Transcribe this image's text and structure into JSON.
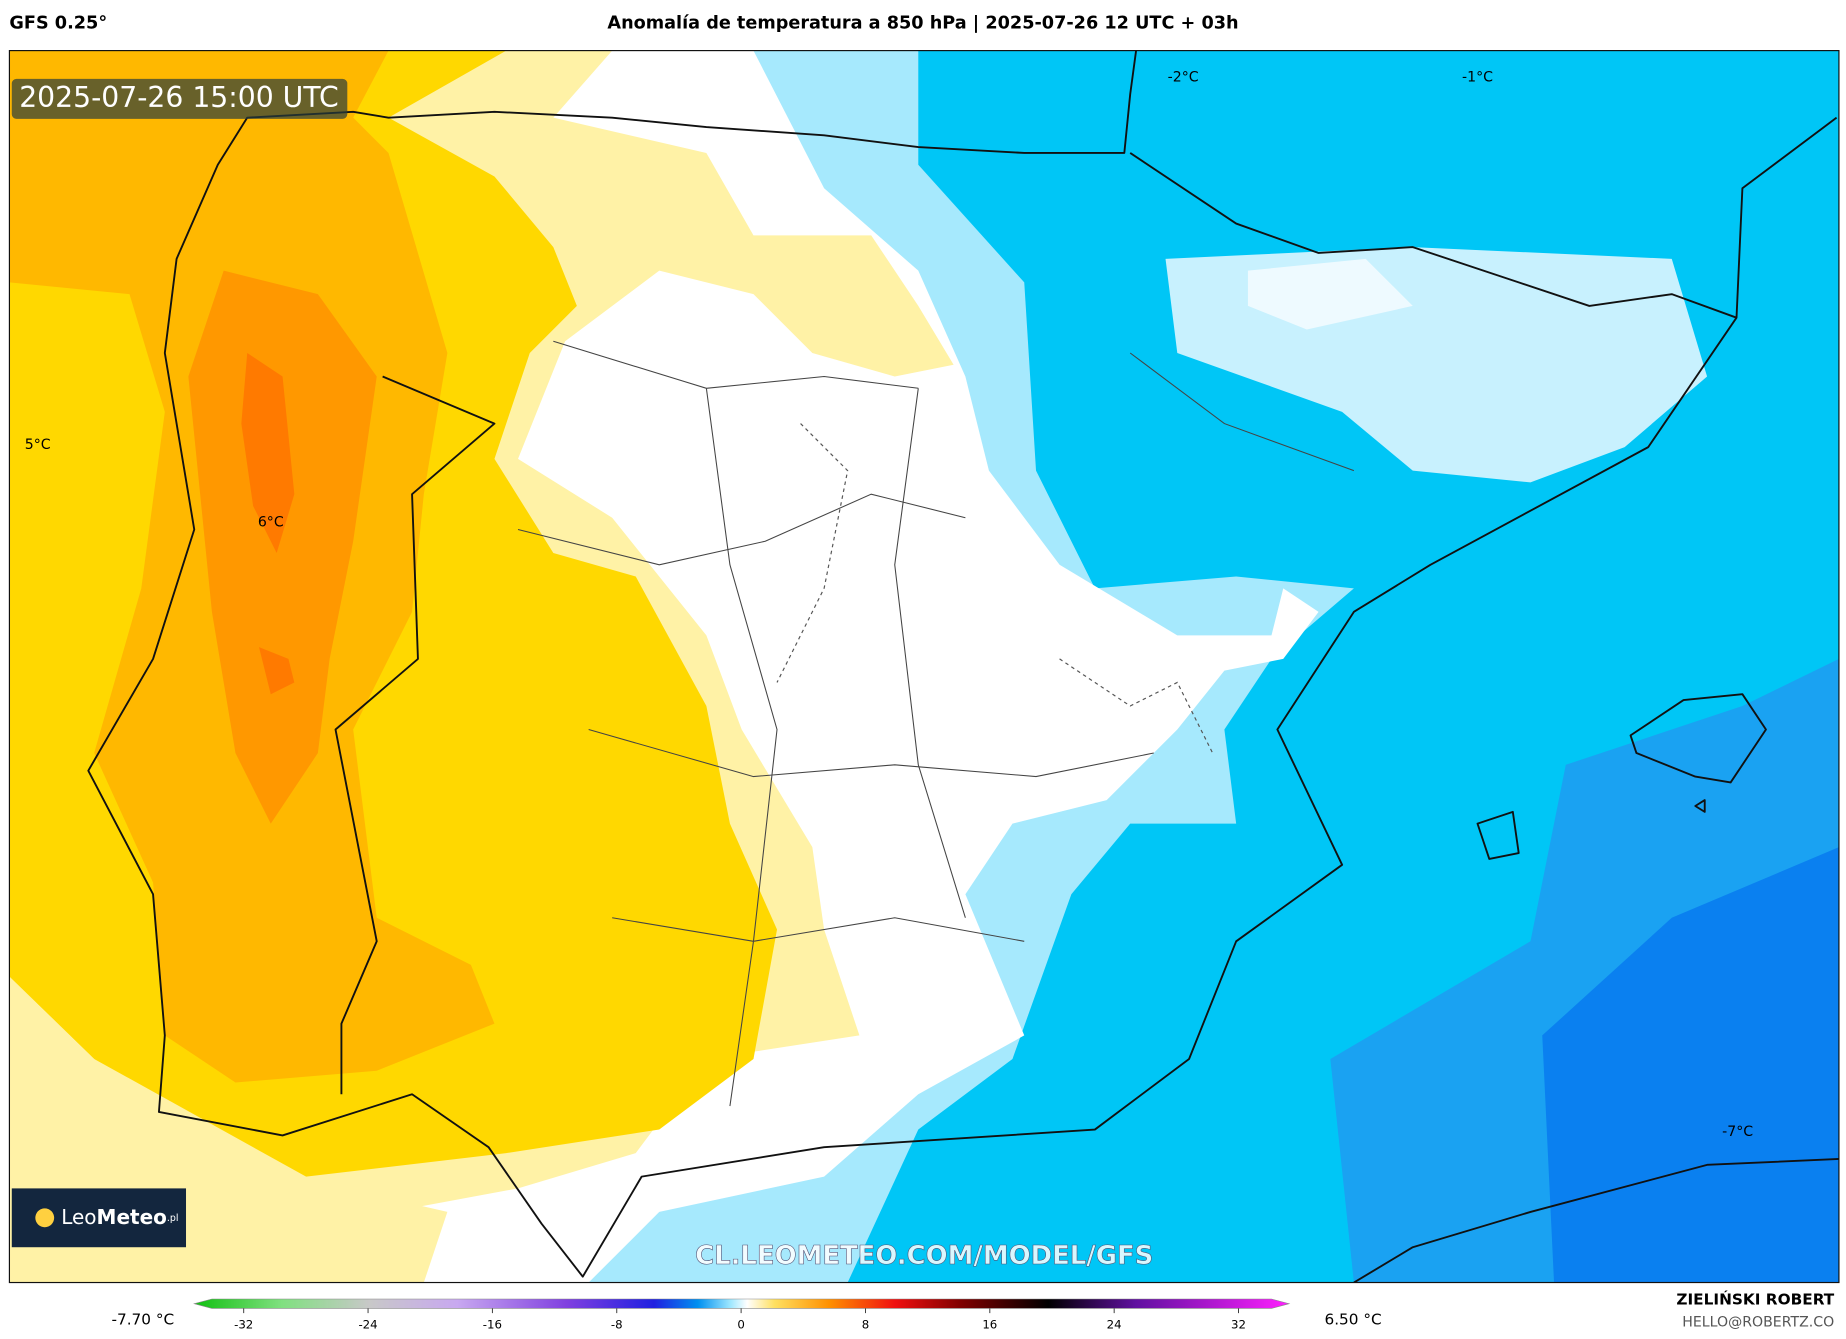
{
  "header": {
    "model": "GFS 0.25°",
    "title": "Anomalía de temperatura a 850 hPa | 2025-07-26 12 UTC + 03h"
  },
  "map": {
    "timestamp": "2025-07-26 15:00 UTC",
    "labels": [
      "-2°C",
      "-1°C",
      "5°C",
      "6°C",
      "-7°C"
    ],
    "logo": {
      "leo": "Leo",
      "meteo": "Meteo",
      "suffix": ".pl"
    },
    "watermark": "CL.LEOMETEO.COM/MODEL/GFS"
  },
  "colorbar": {
    "min_label": "-7.70 °C",
    "max_label": "6.50 °C",
    "lim": [
      -32,
      32
    ],
    "ticks": [
      -32,
      -24,
      -16,
      -8,
      0,
      8,
      16,
      24,
      32
    ]
  },
  "footer": {
    "author": "ZIELIŃSKI ROBERT",
    "email": "HELLO@ROBERTZ.CO"
  }
}
